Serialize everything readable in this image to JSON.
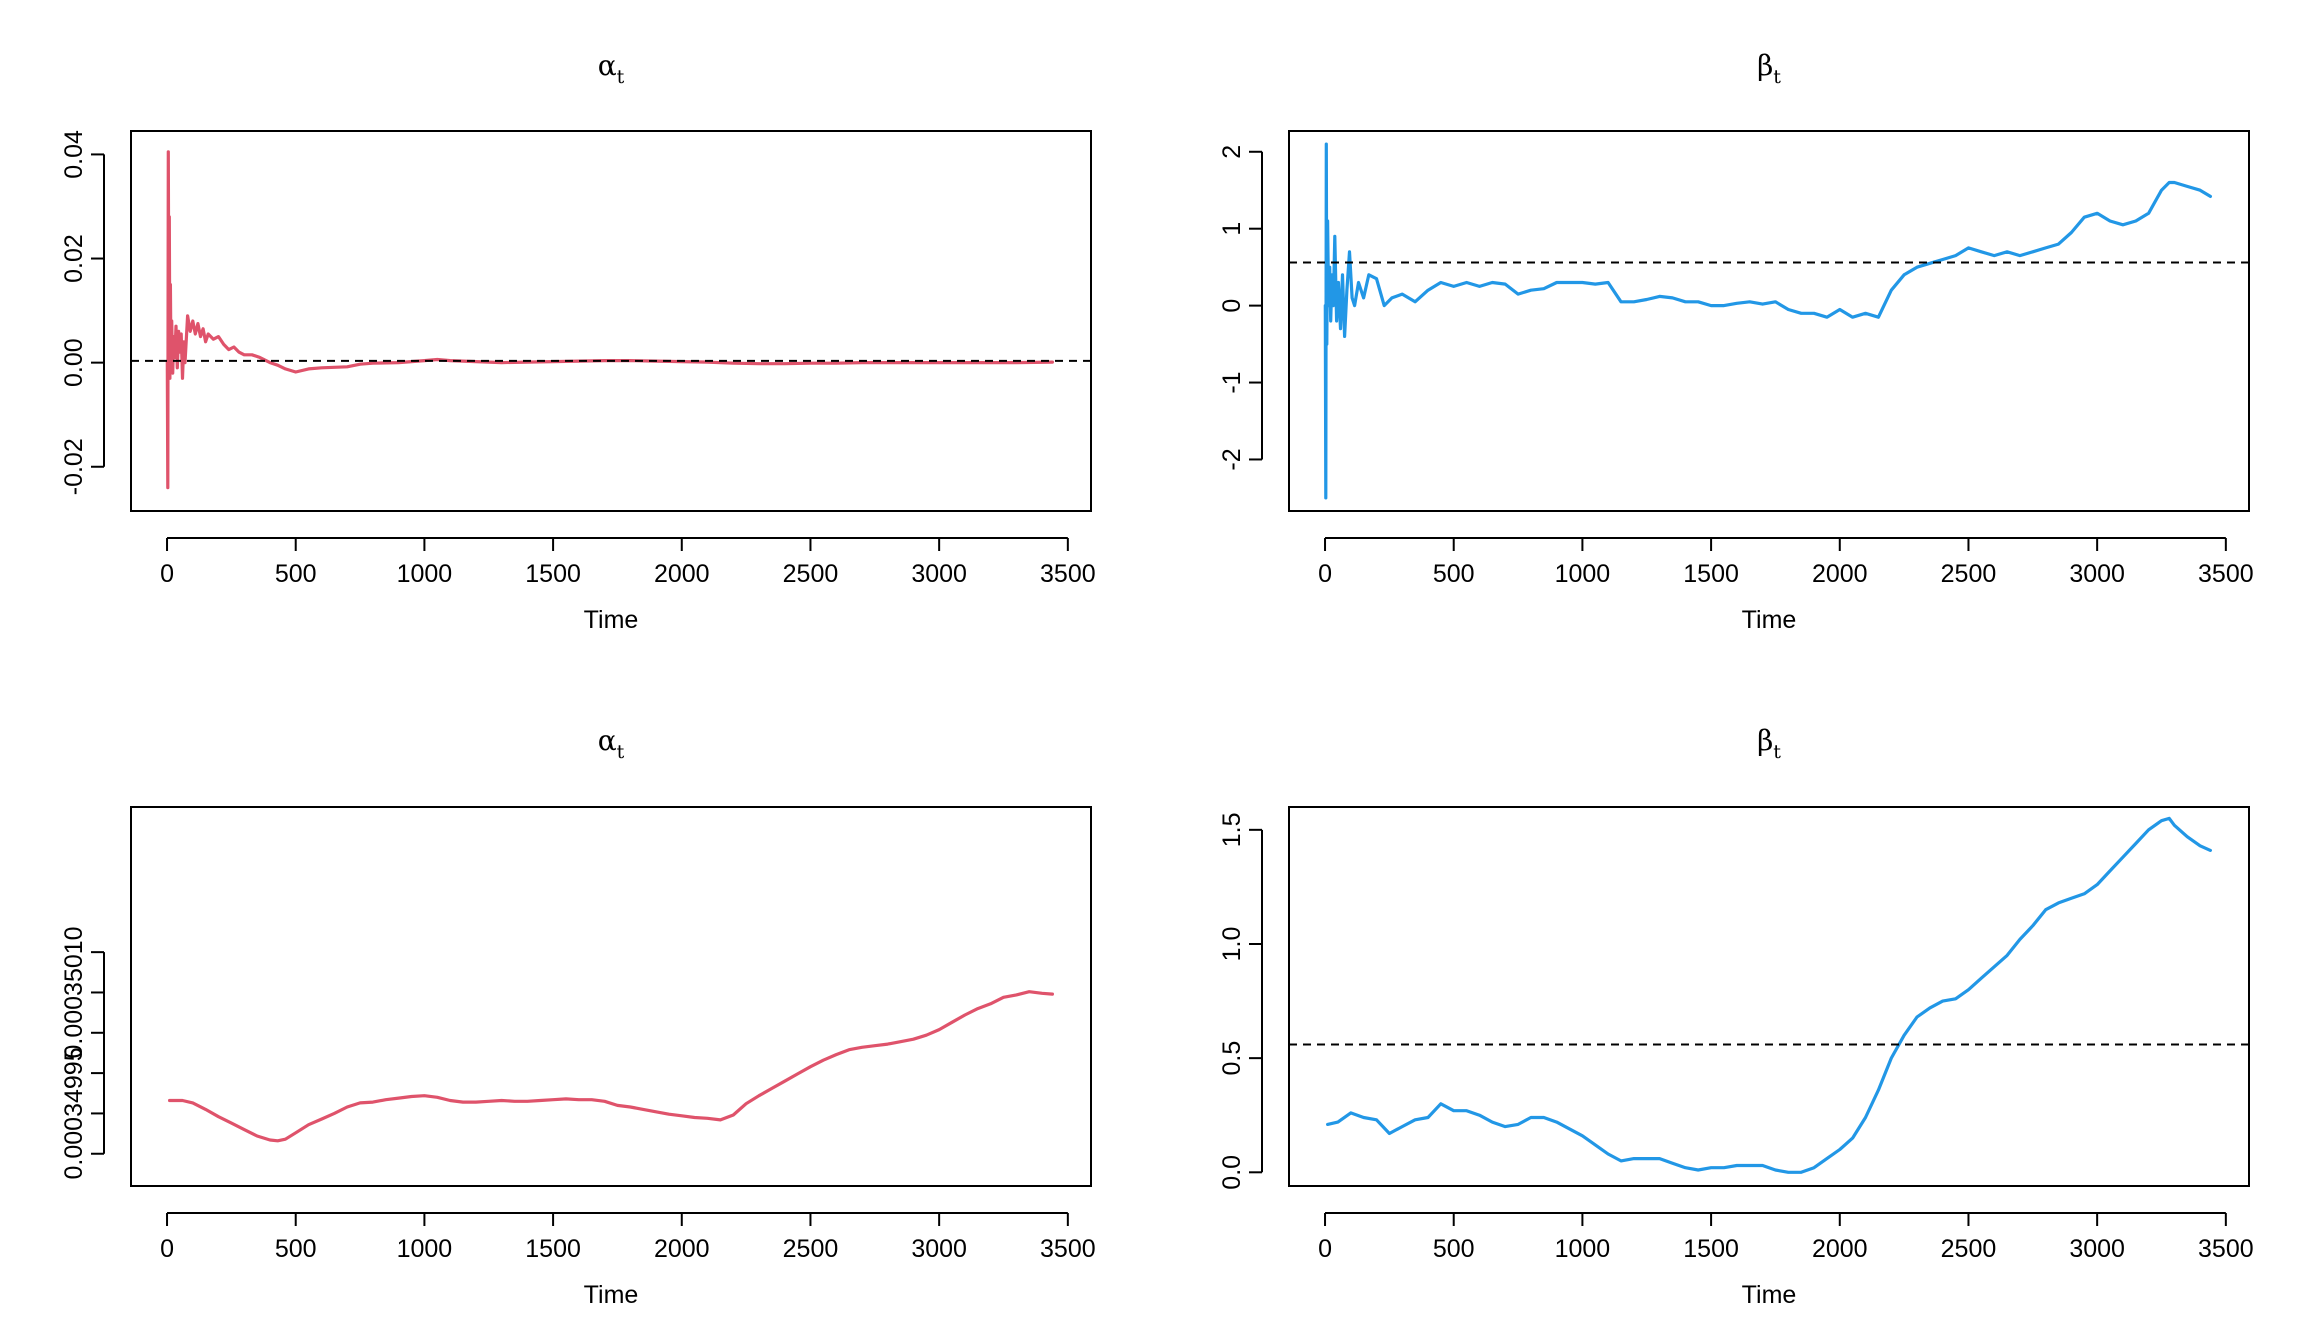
{
  "chart_data": [
    {
      "type": "line",
      "title": "α",
      "title_subscript": "t",
      "xlabel": "Time",
      "ylabel": "",
      "xlim": [
        -140,
        3590
      ],
      "ylim": [
        -0.0285,
        0.0445
      ],
      "x_ticks": [
        0,
        500,
        1000,
        1500,
        2000,
        2500,
        3000,
        3500
      ],
      "x_tick_labels": [
        "0",
        "500",
        "1000",
        "1500",
        "2000",
        "2500",
        "3000",
        "3500"
      ],
      "y_ticks": [
        -0.02,
        0.0,
        0.02,
        0.04
      ],
      "y_tick_labels": [
        "-0.02",
        "0.00",
        "0.02",
        "0.04"
      ],
      "grid": false,
      "reference_line": {
        "y": 0.00035,
        "style": "dashed",
        "color": "#000000"
      },
      "series": [
        {
          "color": "#DF536B",
          "x": [
            1,
            3,
            5,
            7,
            9,
            11,
            13,
            15,
            18,
            22,
            26,
            30,
            35,
            40,
            45,
            50,
            55,
            60,
            65,
            70,
            80,
            90,
            100,
            110,
            120,
            130,
            140,
            150,
            160,
            180,
            200,
            220,
            240,
            260,
            280,
            300,
            330,
            360,
            400,
            430,
            460,
            500,
            550,
            600,
            650,
            700,
            750,
            800,
            900,
            1000,
            1050,
            1100,
            1200,
            1300,
            1400,
            1500,
            1600,
            1700,
            1800,
            1900,
            2000,
            2100,
            2200,
            2300,
            2400,
            2500,
            2600,
            2700,
            2800,
            2900,
            3000,
            3100,
            3200,
            3300,
            3440
          ],
          "y": [
            0.0,
            -0.024,
            0.0405,
            0.01,
            0.028,
            -0.003,
            0.015,
            0.002,
            0.008,
            -0.002,
            0.005,
            0.001,
            0.007,
            -0.001,
            0.006,
            0.002,
            0.0055,
            -0.003,
            0.004,
            0.0,
            0.009,
            0.006,
            0.008,
            0.0055,
            0.0075,
            0.005,
            0.0065,
            0.004,
            0.0055,
            0.0045,
            0.005,
            0.0035,
            0.0025,
            0.003,
            0.002,
            0.0015,
            0.0015,
            0.001,
            0.0,
            -0.0005,
            -0.0012,
            -0.0018,
            -0.0012,
            -0.001,
            -0.0009,
            -0.0008,
            -0.0003,
            -0.0001,
            0.0,
            0.0004,
            0.0006,
            0.0004,
            0.0002,
            0.0,
            0.0001,
            0.0002,
            0.0003,
            0.0004,
            0.0004,
            0.0003,
            0.0002,
            0.0001,
            -0.0001,
            -0.0002,
            -0.0002,
            -0.0001,
            -0.0001,
            0.0,
            0.0,
            0.0,
            0.0,
            0.0,
            0.0,
            0.0,
            0.0001
          ]
        }
      ]
    },
    {
      "type": "line",
      "title": "β",
      "title_subscript": "t",
      "xlabel": "Time",
      "ylabel": "",
      "xlim": [
        -140,
        3590
      ],
      "ylim": [
        -2.67,
        2.27
      ],
      "x_ticks": [
        0,
        500,
        1000,
        1500,
        2000,
        2500,
        3000,
        3500
      ],
      "x_tick_labels": [
        "0",
        "500",
        "1000",
        "1500",
        "2000",
        "2500",
        "3000",
        "3500"
      ],
      "y_ticks": [
        -2,
        -1,
        0,
        1,
        2
      ],
      "y_tick_labels": [
        "-2",
        "-1",
        "0",
        "1",
        "2"
      ],
      "grid": false,
      "reference_line": {
        "y": 0.56,
        "style": "dashed",
        "color": "#000000"
      },
      "series": [
        {
          "color": "#2297E6",
          "x": [
            1,
            3,
            5,
            7,
            10,
            14,
            18,
            22,
            27,
            32,
            38,
            45,
            52,
            60,
            68,
            76,
            85,
            95,
            105,
            115,
            130,
            150,
            170,
            200,
            230,
            260,
            300,
            350,
            400,
            450,
            500,
            550,
            600,
            650,
            700,
            750,
            800,
            850,
            900,
            950,
            1000,
            1050,
            1100,
            1150,
            1200,
            1250,
            1300,
            1350,
            1400,
            1450,
            1500,
            1550,
            1600,
            1650,
            1700,
            1750,
            1800,
            1850,
            1900,
            1950,
            2000,
            2050,
            2100,
            2150,
            2200,
            2250,
            2300,
            2350,
            2400,
            2450,
            2500,
            2550,
            2600,
            2650,
            2700,
            2750,
            2800,
            2850,
            2900,
            2950,
            3000,
            3050,
            3100,
            3150,
            3200,
            3250,
            3280,
            3300,
            3350,
            3400,
            3440
          ],
          "y": [
            0.0,
            -2.5,
            2.1,
            -0.5,
            1.1,
            0.0,
            0.5,
            -0.2,
            0.4,
            0.0,
            0.9,
            -0.2,
            0.3,
            -0.3,
            0.4,
            -0.4,
            0.2,
            0.7,
            0.1,
            0.0,
            0.3,
            0.1,
            0.4,
            0.35,
            0.0,
            0.1,
            0.15,
            0.05,
            0.2,
            0.3,
            0.25,
            0.3,
            0.25,
            0.3,
            0.28,
            0.15,
            0.2,
            0.22,
            0.3,
            0.3,
            0.3,
            0.28,
            0.3,
            0.05,
            0.05,
            0.08,
            0.12,
            0.1,
            0.05,
            0.05,
            0.0,
            0.0,
            0.03,
            0.05,
            0.02,
            0.05,
            -0.05,
            -0.1,
            -0.1,
            -0.15,
            -0.05,
            -0.15,
            -0.1,
            -0.15,
            0.2,
            0.4,
            0.5,
            0.55,
            0.6,
            0.65,
            0.75,
            0.7,
            0.65,
            0.7,
            0.65,
            0.7,
            0.75,
            0.8,
            0.95,
            1.15,
            1.2,
            1.1,
            1.05,
            1.1,
            1.2,
            1.5,
            1.6,
            1.6,
            1.55,
            1.5,
            1.42
          ]
        }
      ]
    },
    {
      "type": "line",
      "title": "α",
      "title_subscript": "t",
      "xlabel": "Time",
      "ylabel": "",
      "xlim": [
        -140,
        3590
      ],
      "ylim": [
        0.00034986,
        0.00035033
      ],
      "x_ticks": [
        0,
        500,
        1000,
        1500,
        2000,
        2500,
        3000,
        3500
      ],
      "x_tick_labels": [
        "0",
        "500",
        "1000",
        "1500",
        "2000",
        "2500",
        "3000",
        "3500"
      ],
      "y_ticks": [
        0.0003499,
        0.00034995,
        0.00035,
        0.00035005,
        0.0003501,
        0.00035015
      ],
      "y_tick_labels": [
        "0.00034995",
        "0.00035010"
      ],
      "y_tick_label_values": [
        0.00034995,
        0.0003501
      ],
      "grid": false,
      "series": [
        {
          "color": "#DF536B",
          "x": [
            10,
            60,
            100,
            150,
            200,
            250,
            300,
            350,
            400,
            430,
            460,
            500,
            550,
            600,
            650,
            700,
            750,
            800,
            850,
            900,
            950,
            1000,
            1050,
            1100,
            1150,
            1200,
            1250,
            1300,
            1350,
            1400,
            1450,
            1500,
            1550,
            1600,
            1650,
            1700,
            1750,
            1800,
            1850,
            1900,
            1950,
            2000,
            2050,
            2100,
            2150,
            2200,
            2250,
            2300,
            2350,
            2400,
            2450,
            2500,
            2550,
            2600,
            2650,
            2700,
            2750,
            2800,
            2850,
            2900,
            2950,
            3000,
            3050,
            3100,
            3150,
            3200,
            3250,
            3300,
            3350,
            3400,
            3440
          ],
          "y": [
            0.000349966,
            0.000349966,
            0.000349963,
            0.000349955,
            0.000349946,
            0.000349938,
            0.00034993,
            0.000349922,
            0.000349917,
            0.000349916,
            0.000349918,
            0.000349926,
            0.000349936,
            0.000349943,
            0.00034995,
            0.000349958,
            0.000349963,
            0.000349964,
            0.000349967,
            0.000349969,
            0.000349971,
            0.000349972,
            0.00034997,
            0.000349966,
            0.000349964,
            0.000349964,
            0.000349965,
            0.000349966,
            0.000349965,
            0.000349965,
            0.000349966,
            0.000349967,
            0.000349968,
            0.000349967,
            0.000349967,
            0.000349965,
            0.00034996,
            0.000349958,
            0.000349955,
            0.000349952,
            0.000349949,
            0.000349947,
            0.000349945,
            0.000349944,
            0.000349942,
            0.000349948,
            0.000349962,
            0.000349972,
            0.000349981,
            0.00034999,
            0.000349999,
            0.000350008,
            0.000350016,
            0.000350023,
            0.000350029,
            0.000350032,
            0.000350034,
            0.000350036,
            0.000350039,
            0.000350042,
            0.000350047,
            0.000350054,
            0.000350063,
            0.000350072,
            0.00035008,
            0.000350086,
            0.000350094,
            0.000350097,
            0.000350101,
            0.000350099,
            0.000350098
          ]
        }
      ]
    },
    {
      "type": "line",
      "title": "β",
      "title_subscript": "t",
      "xlabel": "Time",
      "ylabel": "",
      "xlim": [
        -140,
        3590
      ],
      "ylim": [
        -0.06,
        1.6
      ],
      "x_ticks": [
        0,
        500,
        1000,
        1500,
        2000,
        2500,
        3000,
        3500
      ],
      "x_tick_labels": [
        "0",
        "500",
        "1000",
        "1500",
        "2000",
        "2500",
        "3000",
        "3500"
      ],
      "y_ticks": [
        0.0,
        0.5,
        1.0,
        1.5
      ],
      "y_tick_labels": [
        "0.0",
        "0.5",
        "1.0",
        "1.5"
      ],
      "grid": false,
      "reference_line": {
        "y": 0.56,
        "style": "dashed",
        "color": "#000000"
      },
      "series": [
        {
          "color": "#2297E6",
          "x": [
            10,
            50,
            100,
            150,
            200,
            250,
            300,
            350,
            400,
            450,
            500,
            550,
            600,
            650,
            700,
            750,
            800,
            850,
            900,
            950,
            1000,
            1050,
            1100,
            1150,
            1200,
            1250,
            1300,
            1350,
            1400,
            1450,
            1500,
            1550,
            1600,
            1650,
            1700,
            1750,
            1800,
            1850,
            1900,
            1950,
            2000,
            2050,
            2100,
            2150,
            2200,
            2250,
            2300,
            2350,
            2400,
            2450,
            2500,
            2550,
            2600,
            2650,
            2700,
            2750,
            2800,
            2850,
            2900,
            2950,
            3000,
            3050,
            3100,
            3150,
            3200,
            3250,
            3280,
            3300,
            3350,
            3400,
            3440
          ],
          "y": [
            0.21,
            0.22,
            0.26,
            0.24,
            0.23,
            0.17,
            0.2,
            0.23,
            0.24,
            0.3,
            0.27,
            0.27,
            0.25,
            0.22,
            0.2,
            0.21,
            0.24,
            0.24,
            0.22,
            0.19,
            0.16,
            0.12,
            0.08,
            0.05,
            0.06,
            0.06,
            0.06,
            0.04,
            0.02,
            0.01,
            0.02,
            0.02,
            0.03,
            0.03,
            0.03,
            0.01,
            0.0,
            0.0,
            0.02,
            0.06,
            0.1,
            0.15,
            0.24,
            0.36,
            0.5,
            0.6,
            0.68,
            0.72,
            0.75,
            0.76,
            0.8,
            0.85,
            0.9,
            0.95,
            1.02,
            1.08,
            1.15,
            1.18,
            1.2,
            1.22,
            1.26,
            1.32,
            1.38,
            1.44,
            1.5,
            1.54,
            1.55,
            1.52,
            1.47,
            1.43,
            1.41
          ]
        }
      ]
    }
  ]
}
